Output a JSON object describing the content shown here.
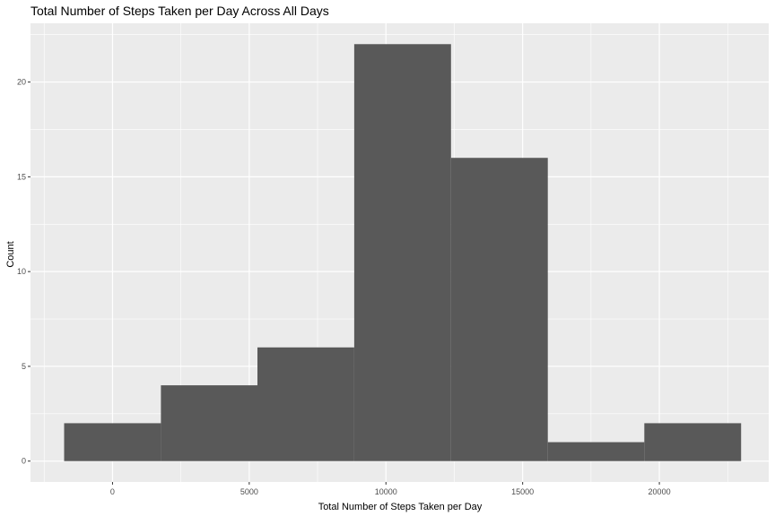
{
  "chart_data": {
    "type": "bar",
    "title": "Total Number of Steps Taken per Day Across All Days",
    "xlabel": "Total Number of Steps Taken per Day",
    "ylabel": "Count",
    "xlim": [
      -3000,
      24000
    ],
    "ylim": [
      -1.1,
      23.1
    ],
    "x_ticks": [
      0,
      5000,
      10000,
      15000,
      20000
    ],
    "x_tick_labels": [
      "0",
      "5000",
      "10000",
      "15000",
      "20000"
    ],
    "y_ticks": [
      0,
      5,
      10,
      15,
      20
    ],
    "y_tick_labels": [
      "0",
      "5",
      "10",
      "15",
      "20"
    ],
    "bins": [
      {
        "start": -1770,
        "end": 1770,
        "count": 2
      },
      {
        "start": 1770,
        "end": 5300,
        "count": 4
      },
      {
        "start": 5300,
        "end": 8840,
        "count": 6
      },
      {
        "start": 8840,
        "end": 12380,
        "count": 22
      },
      {
        "start": 12380,
        "end": 15920,
        "count": 16
      },
      {
        "start": 15920,
        "end": 19450,
        "count": 1
      },
      {
        "start": 19450,
        "end": 22990,
        "count": 2
      }
    ],
    "grid": true,
    "legend": "none",
    "colors": {
      "panel_background": "#ebebeb",
      "grid_major": "#ffffff",
      "bar_fill": "#595959"
    }
  }
}
